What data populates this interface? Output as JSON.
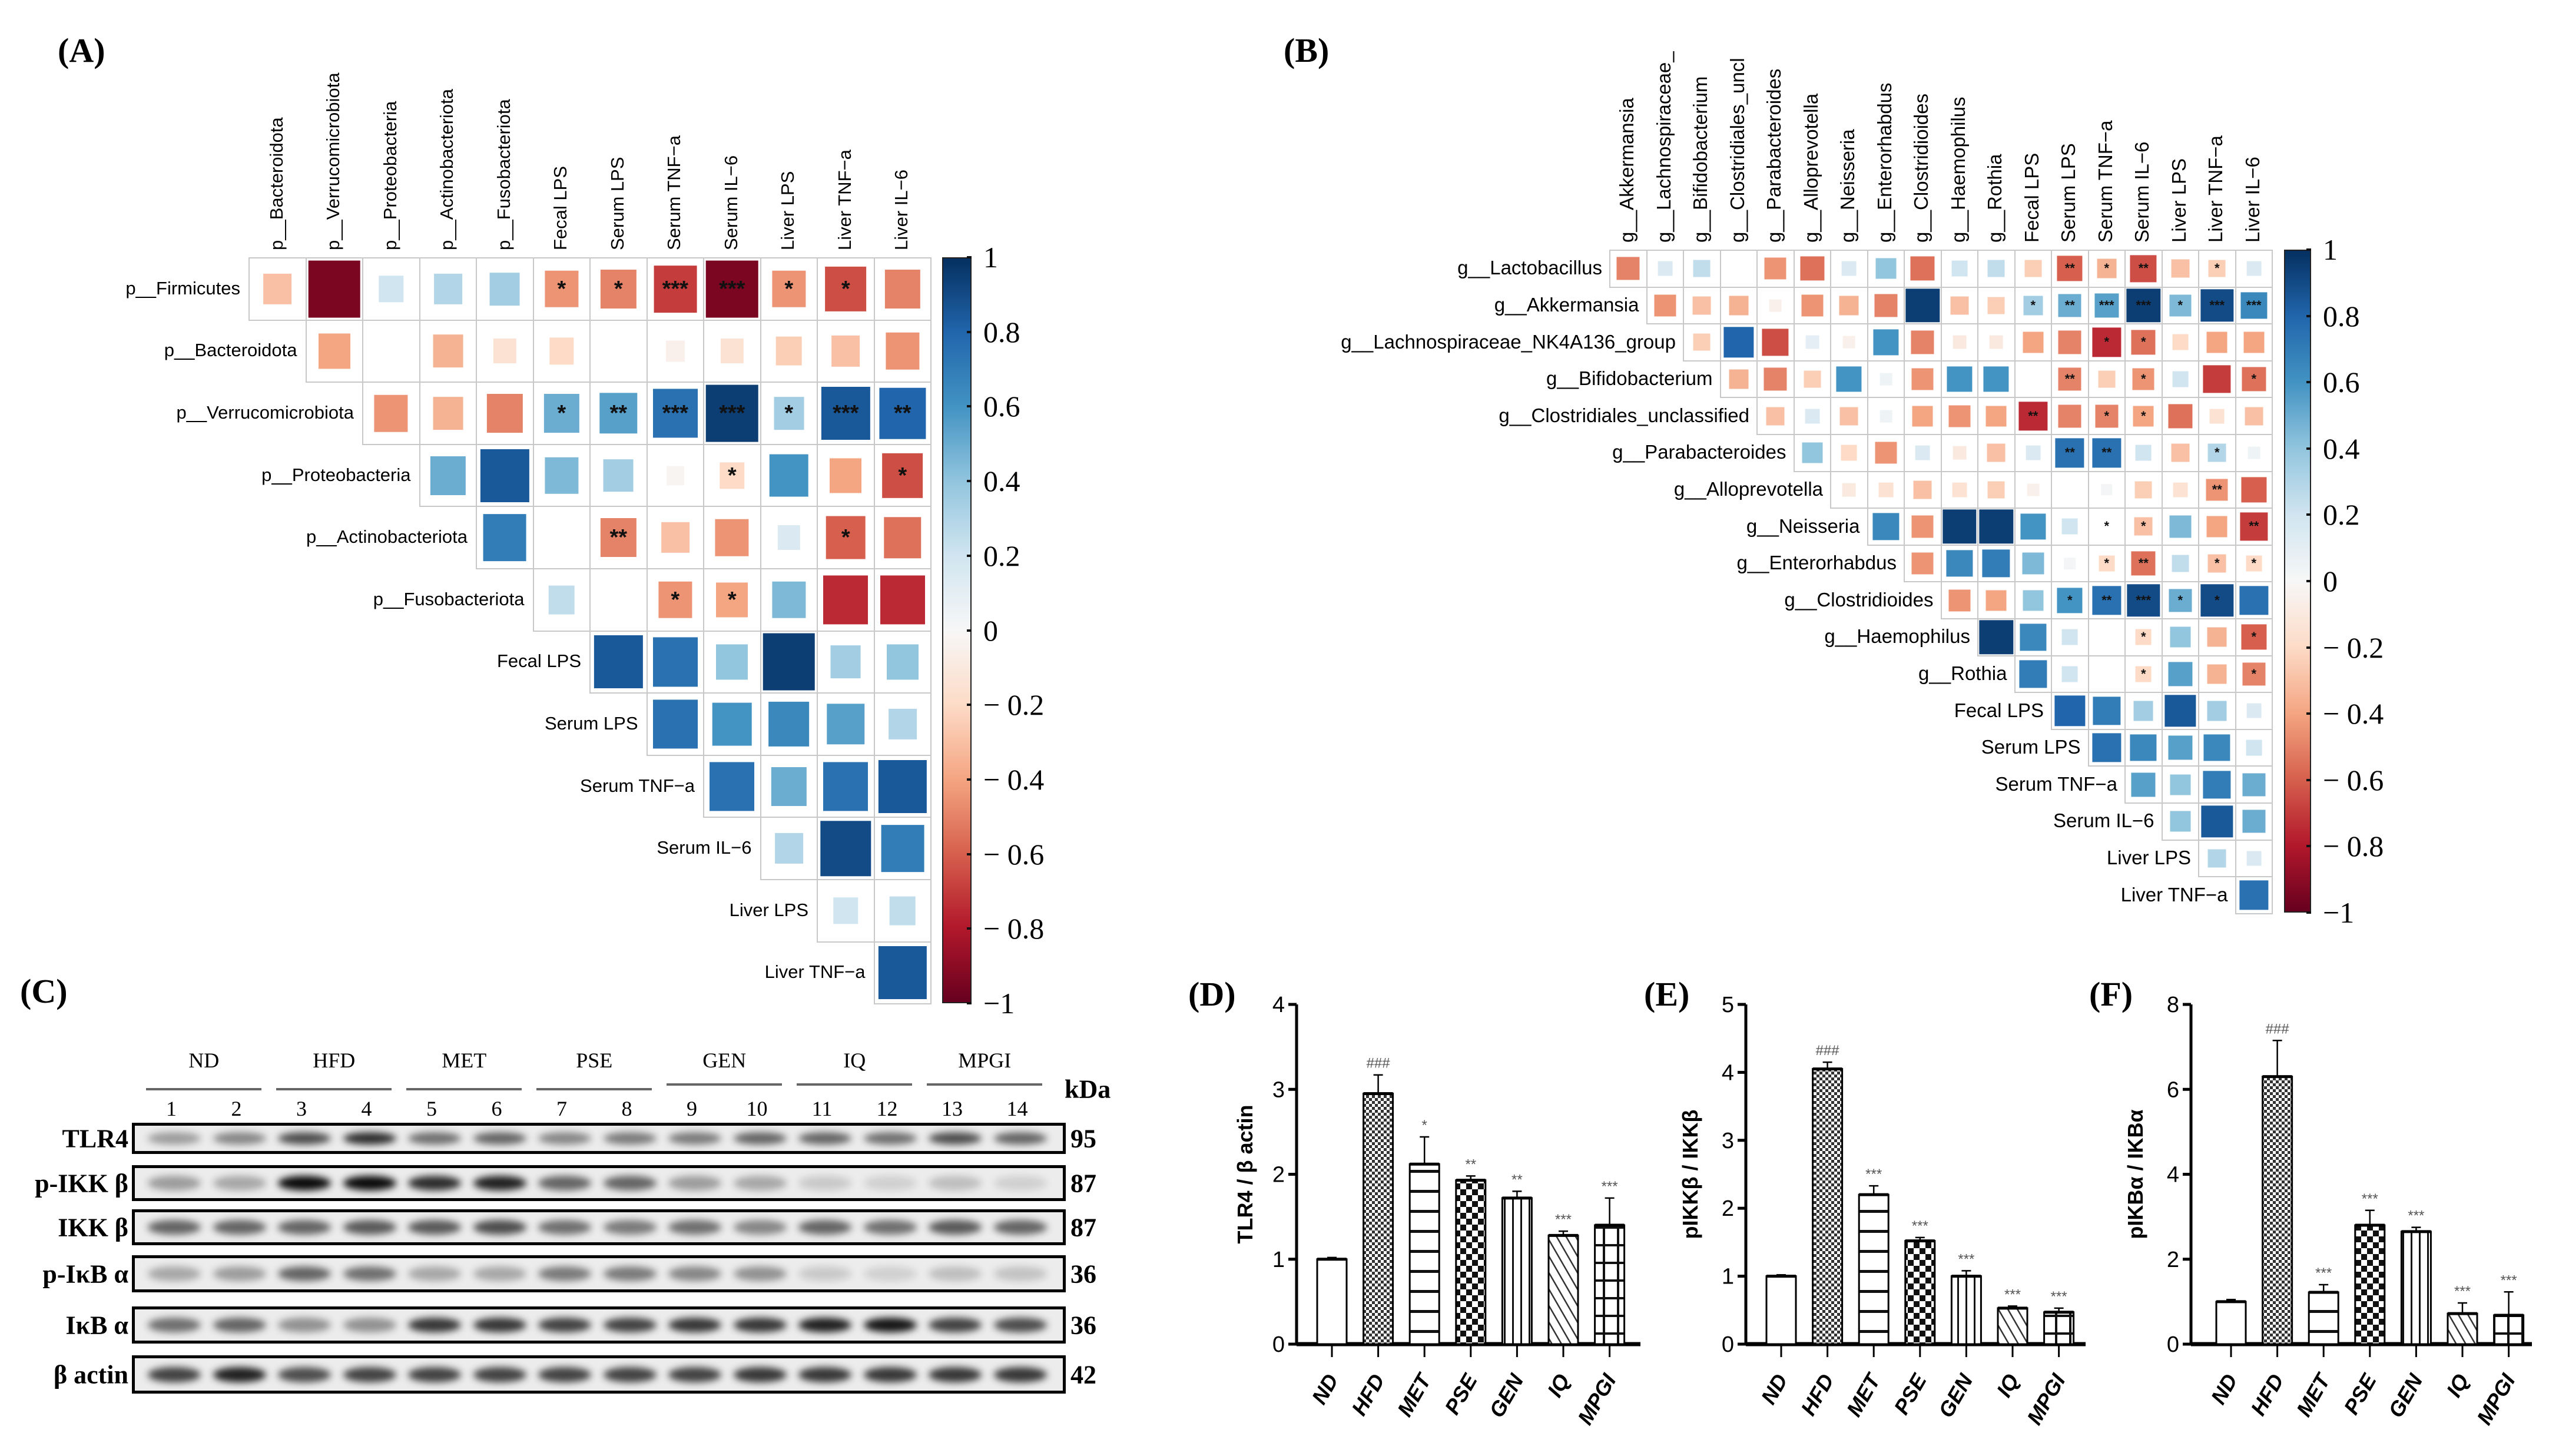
{
  "panels": {
    "a": "(A)",
    "b": "(B)",
    "c": "(C)",
    "d": "(D)",
    "e": "(E)",
    "f": "(F)"
  },
  "colorbar_labels": [
    "1",
    "0.8",
    "0.6",
    "0.4",
    "0.2",
    "0",
    "− 0.2",
    "− 0.4",
    "− 0.6",
    "− 0.8",
    "−1"
  ],
  "colors": {
    "neg1": "#67001f",
    "neg08": "#b2182b",
    "neg06": "#d6604d",
    "neg04": "#f4a582",
    "neg02": "#fddbc7",
    "zero": "#f7f7f7",
    "pos02": "#d1e5f0",
    "pos04": "#92c5de",
    "pos06": "#4393c3",
    "pos08": "#2166ac",
    "pos1": "#053061"
  },
  "chart_data": [
    {
      "panel": "A",
      "type": "heatmap",
      "title": "",
      "value_range": [
        -1,
        1
      ],
      "rows": [
        "p__Firmicutes",
        "p__Bacteroidota",
        "p__Verrucomicrobiota",
        "p__Proteobacteria",
        "p__Actinobacteriota",
        "p__Fusobacteriota",
        "Fecal LPS",
        "Serum LPS",
        "Serum TNF−a",
        "Serum IL−6",
        "Liver LPS",
        "Liver TNF−a"
      ],
      "cols": [
        "p__Bacteroidota",
        "p__Verrucomicrobiota",
        "p__Proteobacteria",
        "p__Actinobacteriota",
        "p__Fusobacteriota",
        "Fecal LPS",
        "Serum LPS",
        "Serum TNF−a",
        "Serum IL−6",
        "Liver LPS",
        "Liver TNF−a",
        "Liver IL−6"
      ],
      "layout": "upper-triangle",
      "values": [
        [
          -0.3,
          -0.95,
          0.2,
          0.3,
          0.35,
          -0.45,
          -0.5,
          -0.7,
          -0.95,
          -0.45,
          -0.65,
          -0.5
        ],
        [
          -0.4,
          0.0,
          -0.35,
          -0.15,
          -0.2,
          0.0,
          -0.05,
          -0.15,
          -0.25,
          -0.3,
          -0.45
        ],
        [
          -0.45,
          -0.35,
          -0.5,
          0.5,
          0.55,
          0.75,
          0.95,
          0.35,
          0.85,
          0.8
        ],
        [
          0.5,
          0.85,
          0.45,
          0.35,
          -0.02,
          -0.2,
          0.6,
          -0.4,
          -0.65
        ],
        [
          0.7,
          0.0,
          -0.5,
          -0.3,
          -0.45,
          0.15,
          -0.6,
          -0.55
        ],
        [
          0.25,
          0.0,
          -0.45,
          -0.4,
          0.45,
          -0.75,
          -0.75
        ],
        [
          0.85,
          0.75,
          0.4,
          0.95,
          0.35,
          0.4
        ],
        [
          0.75,
          0.6,
          0.65,
          0.55,
          0.3
        ],
        [
          0.75,
          0.5,
          0.75,
          0.85
        ],
        [
          0.3,
          0.9,
          0.7
        ],
        [
          0.2,
          0.25
        ],
        [
          0.85
        ]
      ],
      "significance": [
        [
          "",
          "",
          "",
          "",
          "",
          "*",
          "*",
          "***",
          "***",
          "*",
          "*",
          ""
        ],
        [
          "",
          "",
          "",
          "",
          "",
          "",
          "",
          "",
          "",
          "",
          ""
        ],
        [
          "",
          "",
          "",
          "*",
          "**",
          "***",
          "***",
          "*",
          "***",
          "**"
        ],
        [
          "",
          "",
          "",
          "",
          "",
          "*",
          "",
          "",
          "*"
        ],
        [
          "",
          "",
          "**",
          "",
          "",
          "",
          "*",
          ""
        ],
        [
          "",
          "",
          "*",
          "*",
          "",
          "",
          ""
        ],
        [
          "",
          "",
          "",
          "",
          "",
          ""
        ],
        [
          "",
          "",
          "",
          "",
          ""
        ],
        [
          "",
          "",
          "",
          ""
        ],
        [
          "",
          "",
          ""
        ],
        [
          "",
          ""
        ],
        [
          ""
        ]
      ]
    },
    {
      "panel": "B",
      "type": "heatmap",
      "title": "",
      "value_range": [
        -1,
        1
      ],
      "rows": [
        "g__Lactobacillus",
        "g__Akkermansia",
        "g__Lachnospiraceae_NK4A136_group",
        "g__Bifidobacterium",
        "g__Clostridiales_unclassified",
        "g__Parabacteroides",
        "g__Alloprevotella",
        "g__Neisseria",
        "g__Enterorhabdus",
        "g__Clostridioides",
        "g__Haemophilus",
        "g__Rothia",
        "Fecal LPS",
        "Serum LPS",
        "Serum TNF−a",
        "Serum IL−6",
        "Liver LPS",
        "Liver TNF−a"
      ],
      "cols": [
        "g__Akkermansia",
        "g__Lachnospiraceae_",
        "g__Bifidobacterium",
        "g__Clostridiales_uncl",
        "g__Parabacteroides",
        "g__Alloprevotella",
        "g__Neisseria",
        "g__Enterorhabdus",
        "g__Clostridioides",
        "g__Haemophilus",
        "g__Rothia",
        "Fecal LPS",
        "Serum LPS",
        "Serum TNF−a",
        "Serum IL−6",
        "Liver LPS",
        "Liver TNF−a",
        "Liver IL−6"
      ],
      "layout": "upper-triangle",
      "values": [
        [
          -0.5,
          0.15,
          0.25,
          0.0,
          -0.45,
          -0.55,
          0.15,
          0.4,
          -0.55,
          0.2,
          0.25,
          -0.25,
          -0.6,
          -0.35,
          -0.65,
          -0.3,
          -0.25,
          0.15
        ],
        [
          -0.45,
          -0.3,
          -0.35,
          -0.05,
          -0.45,
          -0.35,
          -0.5,
          0.95,
          -0.3,
          -0.25,
          0.35,
          0.5,
          0.55,
          0.95,
          0.45,
          0.9,
          0.65
        ],
        [
          -0.25,
          0.8,
          -0.65,
          0.1,
          -0.05,
          0.6,
          -0.5,
          -0.1,
          -0.1,
          -0.4,
          -0.5,
          -0.75,
          -0.55,
          -0.2,
          -0.4,
          -0.4
        ],
        [
          -0.35,
          -0.5,
          -0.25,
          0.6,
          0.05,
          -0.45,
          0.6,
          0.6,
          0.0,
          -0.5,
          -0.25,
          -0.45,
          0.2,
          -0.7,
          -0.55
        ],
        [
          -0.3,
          0.15,
          -0.3,
          0.05,
          -0.4,
          -0.45,
          -0.4,
          -0.75,
          -0.5,
          -0.5,
          -0.4,
          -0.55,
          -0.15,
          -0.3
        ],
        [
          0.4,
          -0.2,
          -0.45,
          0.15,
          -0.1,
          -0.3,
          0.15,
          0.75,
          0.75,
          0.2,
          -0.3,
          0.3,
          0.05
        ],
        [
          -0.1,
          -0.15,
          -0.3,
          -0.15,
          -0.25,
          -0.05,
          0.0,
          0.02,
          -0.25,
          -0.15,
          -0.45,
          -0.6
        ],
        [
          0.65,
          -0.45,
          0.95,
          0.95,
          0.6,
          0.2,
          0.0,
          -0.3,
          0.45,
          -0.4,
          -0.7
        ],
        [
          -0.45,
          0.65,
          0.7,
          0.45,
          0.02,
          -0.2,
          -0.55,
          0.25,
          -0.3,
          -0.2
        ],
        [
          -0.45,
          -0.4,
          0.4,
          0.6,
          0.75,
          0.9,
          0.5,
          0.9,
          0.75
        ],
        [
          0.95,
          0.65,
          0.2,
          0.0,
          -0.2,
          0.4,
          -0.35,
          -0.6
        ],
        [
          0.7,
          0.2,
          0.0,
          -0.2,
          0.55,
          -0.35,
          -0.5
        ],
        [
          0.8,
          0.7,
          0.35,
          0.85,
          0.35,
          0.15
        ],
        [
          0.75,
          0.65,
          0.55,
          0.65,
          0.2
        ],
        [
          0.55,
          0.4,
          0.7,
          0.5
        ],
        [
          0.4,
          0.85,
          0.5
        ],
        [
          0.3,
          0.15
        ],
        [
          0.75
        ]
      ],
      "significance": [
        [
          "",
          "",
          "",
          "",
          "",
          "",
          "",
          "",
          "",
          "",
          "",
          "",
          "**",
          "*",
          "**",
          "",
          "*",
          ""
        ],
        [
          "",
          "",
          "",
          "",
          "",
          "",
          "",
          "",
          "",
          "",
          "*",
          "**",
          "***",
          "***",
          "*",
          "***",
          "***"
        ],
        [
          "",
          "",
          "",
          "",
          "",
          "",
          "",
          "",
          "",
          "",
          "",
          "*",
          "*",
          "",
          "",
          ""
        ],
        [
          "",
          "",
          "",
          "",
          "",
          "",
          "",
          "",
          "",
          "**",
          "",
          "*",
          "",
          "",
          "*"
        ],
        [
          "",
          "",
          "",
          "",
          "",
          "",
          "",
          "**",
          "",
          "*",
          "*",
          "",
          "",
          ""
        ],
        [
          "",
          "",
          "",
          "",
          "",
          "",
          "",
          "**",
          "**",
          "",
          "",
          "*",
          ""
        ],
        [
          "",
          "",
          "",
          "",
          "",
          "",
          "",
          "",
          "",
          "",
          "**",
          ""
        ],
        [
          "",
          "",
          "",
          "",
          "",
          "",
          "*",
          "*",
          "",
          "",
          "**"
        ],
        [
          "",
          "",
          "",
          "",
          "",
          "*",
          "**",
          "",
          "*",
          "*"
        ],
        [
          "",
          "",
          "",
          "*",
          "**",
          "***",
          "*",
          "*",
          ""
        ],
        [
          "",
          "",
          "",
          "",
          "*",
          "",
          "",
          "*"
        ],
        [
          "",
          "",
          "",
          "*",
          "",
          "",
          "*"
        ],
        [
          "",
          "",
          "",
          "",
          "",
          ""
        ],
        [
          "",
          "",
          "",
          "",
          ""
        ],
        [
          "",
          "",
          "",
          ""
        ],
        [
          "",
          "",
          ""
        ],
        [
          "",
          ""
        ],
        [
          ""
        ]
      ]
    },
    {
      "panel": "C",
      "type": "western_blot",
      "groups": [
        "ND",
        "HFD",
        "MET",
        "PSE",
        "GEN",
        "IQ",
        "MPGI"
      ],
      "lanes": [
        "1",
        "2",
        "3",
        "4",
        "5",
        "6",
        "7",
        "8",
        "9",
        "10",
        "11",
        "12",
        "13",
        "14"
      ],
      "kda_header": "kDa",
      "blots": [
        {
          "label": "TLR4",
          "kda": "95",
          "intensity": [
            0.35,
            0.45,
            0.7,
            0.85,
            0.55,
            0.6,
            0.45,
            0.5,
            0.5,
            0.6,
            0.6,
            0.55,
            0.7,
            0.6
          ]
        },
        {
          "label": "p-IKK β",
          "kda": "87",
          "intensity": [
            0.35,
            0.3,
            1.0,
            1.0,
            0.85,
            0.9,
            0.6,
            0.6,
            0.35,
            0.3,
            0.15,
            0.12,
            0.2,
            0.12
          ]
        },
        {
          "label": "IKK β",
          "kda": "87",
          "intensity": [
            0.6,
            0.6,
            0.6,
            0.65,
            0.65,
            0.7,
            0.55,
            0.5,
            0.55,
            0.45,
            0.6,
            0.55,
            0.65,
            0.6
          ]
        },
        {
          "label": "p-IκB α",
          "kda": "36",
          "intensity": [
            0.3,
            0.35,
            0.6,
            0.55,
            0.3,
            0.3,
            0.5,
            0.5,
            0.45,
            0.4,
            0.15,
            0.12,
            0.2,
            0.18
          ]
        },
        {
          "label": "IκB α",
          "kda": "36",
          "intensity": [
            0.55,
            0.6,
            0.4,
            0.4,
            0.8,
            0.8,
            0.75,
            0.75,
            0.8,
            0.8,
            0.9,
            0.95,
            0.75,
            0.7
          ]
        },
        {
          "label": "β actin",
          "kda": "42",
          "intensity": [
            0.75,
            0.9,
            0.7,
            0.75,
            0.75,
            0.75,
            0.75,
            0.75,
            0.75,
            0.8,
            0.8,
            0.8,
            0.8,
            0.8
          ]
        }
      ]
    },
    {
      "panel": "D",
      "type": "bar",
      "categories": [
        "ND",
        "HFD",
        "MET",
        "PSE",
        "GEN",
        "IQ",
        "MPGI"
      ],
      "values": [
        1.0,
        2.95,
        2.12,
        1.93,
        1.72,
        1.28,
        1.4
      ],
      "errors": [
        0.02,
        0.22,
        0.32,
        0.05,
        0.08,
        0.05,
        0.32
      ],
      "annotations": [
        "",
        "###",
        "*",
        "**",
        "**",
        "***",
        "***"
      ],
      "ylabel": "TLR4 / β actin",
      "xlabel": "",
      "ylim": [
        0,
        4
      ],
      "yticks": [
        "0",
        "1",
        "2",
        "3",
        "4"
      ],
      "patterns": [
        "none",
        "dots",
        "hlines",
        "checker",
        "vlines",
        "diagonal",
        "grid"
      ]
    },
    {
      "panel": "E",
      "type": "bar",
      "categories": [
        "ND",
        "HFD",
        "MET",
        "PSE",
        "GEN",
        "IQ",
        "MPGI"
      ],
      "values": [
        1.0,
        4.05,
        2.2,
        1.52,
        1.0,
        0.53,
        0.47
      ],
      "errors": [
        0.02,
        0.1,
        0.13,
        0.05,
        0.08,
        0.03,
        0.06
      ],
      "annotations": [
        "",
        "###",
        "***",
        "***",
        "***",
        "***",
        "***"
      ],
      "ylabel": "pIKKβ / IKKβ",
      "xlabel": "",
      "ylim": [
        0,
        5
      ],
      "yticks": [
        "0",
        "1",
        "2",
        "3",
        "4",
        "5"
      ],
      "patterns": [
        "none",
        "dots",
        "hlines",
        "checker",
        "vlines",
        "diagonal",
        "grid"
      ]
    },
    {
      "panel": "F",
      "type": "bar",
      "categories": [
        "ND",
        "HFD",
        "MET",
        "PSE",
        "GEN",
        "IQ",
        "MPGI"
      ],
      "values": [
        1.0,
        6.3,
        1.22,
        2.8,
        2.65,
        0.72,
        0.68
      ],
      "errors": [
        0.05,
        0.85,
        0.18,
        0.35,
        0.1,
        0.25,
        0.55
      ],
      "annotations": [
        "",
        "###",
        "***",
        "***",
        "***",
        "***",
        "***"
      ],
      "ylabel": "pIKBα / IKBα",
      "xlabel": "",
      "ylim": [
        0,
        8
      ],
      "yticks": [
        "0",
        "2",
        "4",
        "6",
        "8"
      ],
      "patterns": [
        "none",
        "dots",
        "hlines",
        "checker",
        "vlines",
        "diagonal",
        "grid"
      ]
    }
  ]
}
